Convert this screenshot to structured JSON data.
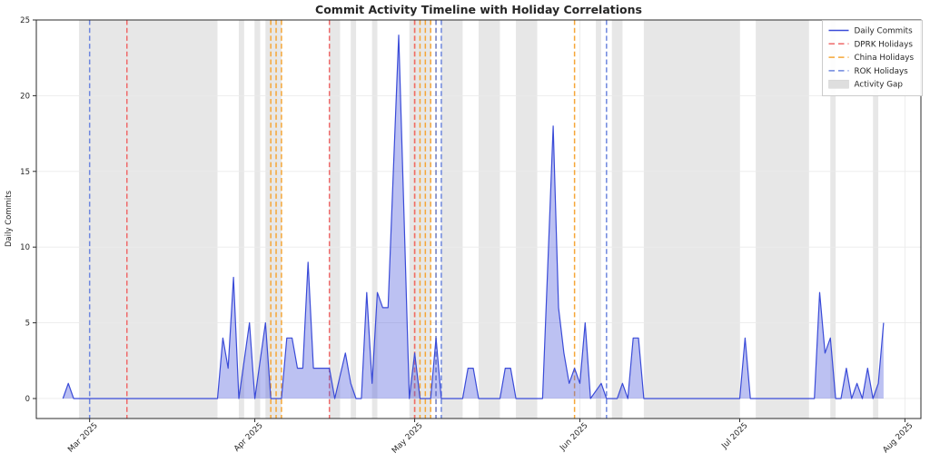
{
  "chart": {
    "title": "Commit Activity Timeline with Holiday Correlations",
    "ylabel": "Daily Commits",
    "x_tick_labels": [
      "Mar 2025",
      "Apr 2025",
      "May 2025",
      "Jun 2025",
      "Jul 2025",
      "Aug 2025"
    ],
    "x_tick_dates": [
      "2025-03-01",
      "2025-04-01",
      "2025-05-01",
      "2025-06-01",
      "2025-07-01",
      "2025-08-01"
    ],
    "y_tick_labels": [
      "0",
      "5",
      "10",
      "15",
      "20",
      "25"
    ],
    "y_tick_values": [
      0,
      5,
      10,
      15,
      20,
      25
    ]
  },
  "legend": {
    "items": [
      {
        "label": "Daily Commits",
        "style": "solid-line",
        "color": "#3a4bd8"
      },
      {
        "label": "DPRK Holidays",
        "style": "dashed-line",
        "color": "#ef6a6a"
      },
      {
        "label": "China Holidays",
        "style": "dashed-line",
        "color": "#f5a637"
      },
      {
        "label": "ROK Holidays",
        "style": "dashed-line",
        "color": "#6e87de"
      },
      {
        "label": "Activity Gap",
        "style": "patch",
        "color": "#dedede"
      }
    ]
  },
  "chart_data": {
    "type": "area",
    "title": "Commit Activity Timeline with Holiday Correlations",
    "xlabel": "",
    "ylabel": "Daily Commits",
    "ylim": [
      -1.32,
      25
    ],
    "x_range": [
      "2025-02-19",
      "2025-08-04"
    ],
    "grid": true,
    "legend_position": "upper right",
    "series": [
      {
        "name": "Daily Commits",
        "points": [
          [
            "2025-02-24",
            0
          ],
          [
            "2025-02-25",
            1
          ],
          [
            "2025-02-26",
            0
          ],
          [
            "2025-03-25",
            0
          ],
          [
            "2025-03-26",
            4
          ],
          [
            "2025-03-27",
            2
          ],
          [
            "2025-03-28",
            8
          ],
          [
            "2025-03-29",
            0
          ],
          [
            "2025-03-31",
            5
          ],
          [
            "2025-04-01",
            0
          ],
          [
            "2025-04-03",
            5
          ],
          [
            "2025-04-04",
            0
          ],
          [
            "2025-04-06",
            0
          ],
          [
            "2025-04-07",
            4
          ],
          [
            "2025-04-08",
            4
          ],
          [
            "2025-04-09",
            2
          ],
          [
            "2025-04-10",
            2
          ],
          [
            "2025-04-11",
            9
          ],
          [
            "2025-04-12",
            2
          ],
          [
            "2025-04-15",
            2
          ],
          [
            "2025-04-16",
            0
          ],
          [
            "2025-04-18",
            3
          ],
          [
            "2025-04-19",
            1
          ],
          [
            "2025-04-20",
            0
          ],
          [
            "2025-04-21",
            0
          ],
          [
            "2025-04-22",
            7
          ],
          [
            "2025-04-23",
            1
          ],
          [
            "2025-04-24",
            7
          ],
          [
            "2025-04-25",
            6
          ],
          [
            "2025-04-26",
            6
          ],
          [
            "2025-04-27",
            15
          ],
          [
            "2025-04-28",
            24
          ],
          [
            "2025-04-29",
            12
          ],
          [
            "2025-04-30",
            0
          ],
          [
            "2025-05-01",
            3
          ],
          [
            "2025-05-02",
            0
          ],
          [
            "2025-05-04",
            0
          ],
          [
            "2025-05-05",
            4
          ],
          [
            "2025-05-06",
            0
          ],
          [
            "2025-05-10",
            0
          ],
          [
            "2025-05-11",
            2
          ],
          [
            "2025-05-12",
            2
          ],
          [
            "2025-05-13",
            0
          ],
          [
            "2025-05-17",
            0
          ],
          [
            "2025-05-18",
            2
          ],
          [
            "2025-05-19",
            2
          ],
          [
            "2025-05-20",
            0
          ],
          [
            "2025-05-25",
            0
          ],
          [
            "2025-05-26",
            9
          ],
          [
            "2025-05-27",
            18
          ],
          [
            "2025-05-28",
            6
          ],
          [
            "2025-05-29",
            3
          ],
          [
            "2025-05-30",
            1
          ],
          [
            "2025-05-31",
            2
          ],
          [
            "2025-06-01",
            1
          ],
          [
            "2025-06-02",
            5
          ],
          [
            "2025-06-03",
            0
          ],
          [
            "2025-06-05",
            1
          ],
          [
            "2025-06-06",
            0
          ],
          [
            "2025-06-08",
            0
          ],
          [
            "2025-06-09",
            1
          ],
          [
            "2025-06-10",
            0
          ],
          [
            "2025-06-11",
            4
          ],
          [
            "2025-06-12",
            4
          ],
          [
            "2025-06-13",
            0
          ],
          [
            "2025-07-01",
            0
          ],
          [
            "2025-07-02",
            4
          ],
          [
            "2025-07-03",
            0
          ],
          [
            "2025-07-15",
            0
          ],
          [
            "2025-07-16",
            7
          ],
          [
            "2025-07-17",
            3
          ],
          [
            "2025-07-18",
            4
          ],
          [
            "2025-07-19",
            0
          ],
          [
            "2025-07-20",
            0
          ],
          [
            "2025-07-21",
            2
          ],
          [
            "2025-07-22",
            0
          ],
          [
            "2025-07-23",
            1
          ],
          [
            "2025-07-24",
            0
          ],
          [
            "2025-07-25",
            2
          ],
          [
            "2025-07-26",
            0
          ],
          [
            "2025-07-27",
            1
          ],
          [
            "2025-07-28",
            5
          ]
        ]
      }
    ],
    "holiday_lines": {
      "dprk": [
        "2025-03-08",
        "2025-04-15",
        "2025-05-01"
      ],
      "china": [
        "2025-04-04",
        "2025-04-05",
        "2025-04-06",
        "2025-05-01",
        "2025-05-02",
        "2025-05-03",
        "2025-05-04",
        "2025-05-05",
        "2025-05-31"
      ],
      "rok": [
        "2025-03-01",
        "2025-05-05",
        "2025-05-06",
        "2025-06-06"
      ]
    },
    "activity_gaps": [
      [
        "2025-02-27",
        "2025-03-25"
      ],
      [
        "2025-03-29",
        "2025-03-30"
      ],
      [
        "2025-04-01",
        "2025-04-02"
      ],
      [
        "2025-04-03",
        "2025-04-06"
      ],
      [
        "2025-04-15",
        "2025-04-17"
      ],
      [
        "2025-04-19",
        "2025-04-20"
      ],
      [
        "2025-04-23",
        "2025-04-24"
      ],
      [
        "2025-04-30",
        "2025-05-04"
      ],
      [
        "2025-05-06",
        "2025-05-10"
      ],
      [
        "2025-05-13",
        "2025-05-17"
      ],
      [
        "2025-05-20",
        "2025-05-24"
      ],
      [
        "2025-06-04",
        "2025-06-05"
      ],
      [
        "2025-06-07",
        "2025-06-09"
      ],
      [
        "2025-06-13",
        "2025-07-01"
      ],
      [
        "2025-07-04",
        "2025-07-14"
      ],
      [
        "2025-07-18",
        "2025-07-19"
      ],
      [
        "2025-07-26",
        "2025-07-27"
      ]
    ],
    "colors": {
      "commit_line": "#3a4bd8",
      "commit_fill": "rgba(80,92,220,0.38)",
      "dprk": "#ef6a6a",
      "china": "#f5a637",
      "rok": "#6e87de",
      "gap": "#e7e7e7",
      "grid": "#ebebeb",
      "spine": "#2b2b2b"
    }
  }
}
